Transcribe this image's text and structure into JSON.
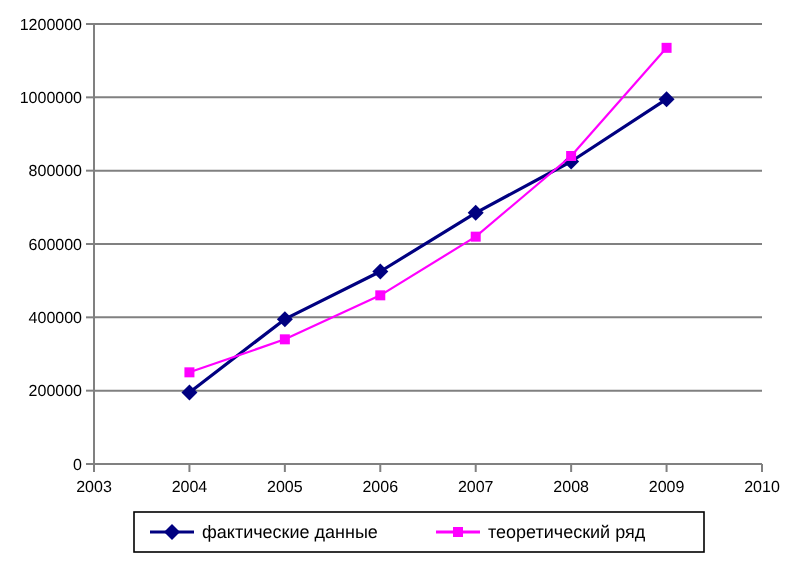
{
  "chart_data": {
    "type": "line",
    "x": [
      2004,
      2005,
      2006,
      2007,
      2008,
      2009
    ],
    "series": [
      {
        "name": "фактические данные",
        "color": "#000080",
        "values": [
          195000,
          395000,
          525000,
          685000,
          825000,
          995000
        ],
        "marker": "diamond"
      },
      {
        "name": "теоретический ряд",
        "color": "#ff00ff",
        "values": [
          250000,
          340000,
          460000,
          620000,
          840000,
          1135000
        ],
        "marker": "square"
      }
    ],
    "xlim": [
      2003,
      2010
    ],
    "xticks": [
      2003,
      2004,
      2005,
      2006,
      2007,
      2008,
      2009,
      2010
    ],
    "ylim": [
      0,
      1200000
    ],
    "yticks": [
      0,
      200000,
      400000,
      600000,
      800000,
      1000000,
      1200000
    ],
    "grid": "y",
    "legend": "bottom",
    "line_style": "solid"
  }
}
